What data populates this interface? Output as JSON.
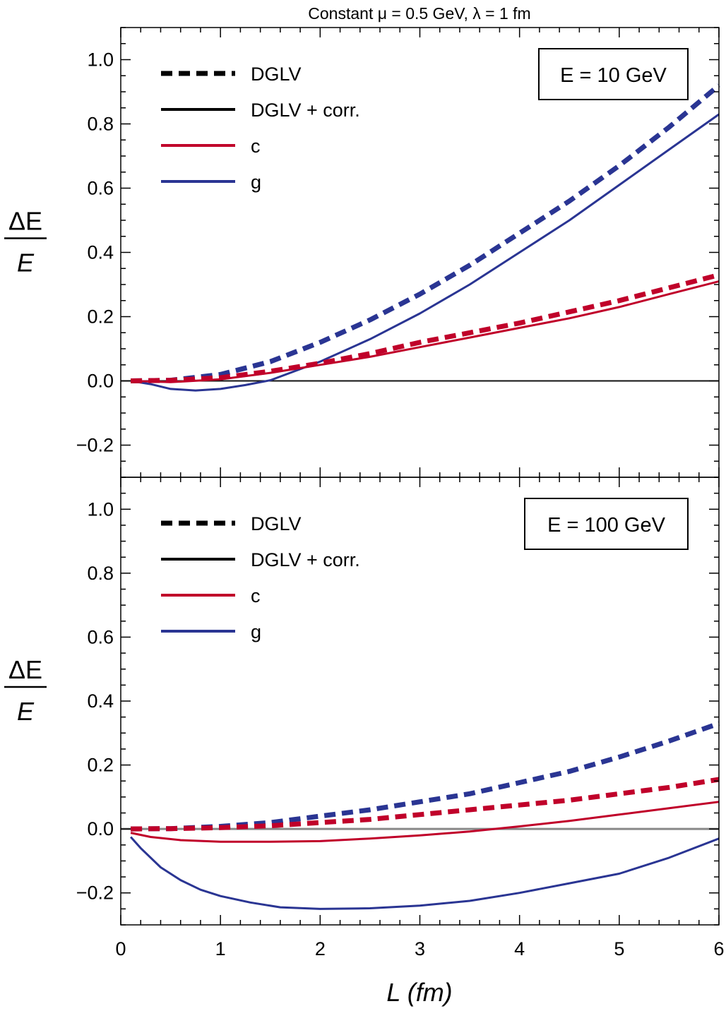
{
  "chart_data": {
    "type": "line",
    "title": "Constant μ = 0.5 GeV, λ = 1 fm",
    "xlabel": "L (fm)",
    "ylabel_numerator": "ΔE",
    "ylabel_denominator": "E",
    "xlim": [
      0,
      6
    ],
    "ylim": [
      -0.3,
      1.1
    ],
    "x_ticks": [
      "0",
      "1",
      "2",
      "3",
      "4",
      "5",
      "6"
    ],
    "y_ticks": [
      "−0.2",
      "0.0",
      "0.2",
      "0.4",
      "0.6",
      "0.8",
      "1.0"
    ],
    "legend": [
      {
        "label": "DGLV",
        "style": "dashed",
        "color": "#000000"
      },
      {
        "label": "DGLV + corr.",
        "style": "solid",
        "color": "#000000"
      },
      {
        "label": "c",
        "style": "solid",
        "color": "#c0002a"
      },
      {
        "label": "g",
        "style": "solid",
        "color": "#2a3593"
      }
    ],
    "colors": {
      "c": "#c0002a",
      "g": "#2a3593"
    },
    "panels": [
      {
        "energy_label": "E = 10 GeV",
        "series": [
          {
            "name": "g DGLV",
            "parton": "g",
            "style": "dashed",
            "x": [
              0.1,
              0.5,
              1.0,
              1.5,
              2.0,
              2.5,
              3.0,
              3.5,
              4.0,
              4.5,
              5.0,
              5.5,
              6.0
            ],
            "y": [
              0.0,
              0.002,
              0.02,
              0.06,
              0.12,
              0.19,
              0.27,
              0.36,
              0.46,
              0.56,
              0.67,
              0.79,
              0.92
            ]
          },
          {
            "name": "g DGLV + corr.",
            "parton": "g",
            "style": "solid",
            "x": [
              0.1,
              0.3,
              0.5,
              0.75,
              1.0,
              1.25,
              1.5,
              2.0,
              2.5,
              3.0,
              3.5,
              4.0,
              4.5,
              5.0,
              5.5,
              6.0
            ],
            "y": [
              0.0,
              -0.01,
              -0.025,
              -0.03,
              -0.025,
              -0.013,
              0.002,
              0.06,
              0.13,
              0.21,
              0.3,
              0.4,
              0.5,
              0.61,
              0.72,
              0.83
            ]
          },
          {
            "name": "c DGLV",
            "parton": "c",
            "style": "dashed",
            "x": [
              0.1,
              0.5,
              1.0,
              1.5,
              2.0,
              2.5,
              3.0,
              3.5,
              4.0,
              4.5,
              5.0,
              5.5,
              6.0
            ],
            "y": [
              0.0,
              0.002,
              0.01,
              0.03,
              0.055,
              0.085,
              0.12,
              0.15,
              0.18,
              0.215,
              0.25,
              0.29,
              0.33
            ]
          },
          {
            "name": "c DGLV + corr.",
            "parton": "c",
            "style": "solid",
            "x": [
              0.1,
              0.5,
              1.0,
              1.5,
              2.0,
              2.5,
              3.0,
              3.5,
              4.0,
              4.5,
              5.0,
              5.5,
              6.0
            ],
            "y": [
              0.0,
              -0.004,
              0.005,
              0.025,
              0.05,
              0.075,
              0.105,
              0.135,
              0.165,
              0.195,
              0.23,
              0.27,
              0.31
            ]
          }
        ]
      },
      {
        "energy_label": "E = 100 GeV",
        "series": [
          {
            "name": "g DGLV",
            "parton": "g",
            "style": "dashed",
            "x": [
              0.1,
              0.5,
              1.0,
              1.5,
              2.0,
              2.5,
              3.0,
              3.5,
              4.0,
              4.5,
              5.0,
              5.5,
              6.0
            ],
            "y": [
              0.0,
              0.001,
              0.008,
              0.02,
              0.04,
              0.06,
              0.085,
              0.11,
              0.145,
              0.18,
              0.225,
              0.275,
              0.33
            ]
          },
          {
            "name": "g DGLV + corr.",
            "parton": "g",
            "style": "solid",
            "x": [
              0.1,
              0.2,
              0.4,
              0.6,
              0.8,
              1.0,
              1.3,
              1.6,
              2.0,
              2.5,
              3.0,
              3.5,
              4.0,
              4.5,
              5.0,
              5.5,
              6.0
            ],
            "y": [
              -0.025,
              -0.06,
              -0.12,
              -0.16,
              -0.19,
              -0.21,
              -0.23,
              -0.245,
              -0.25,
              -0.248,
              -0.24,
              -0.225,
              -0.2,
              -0.17,
              -0.14,
              -0.09,
              -0.03
            ]
          },
          {
            "name": "c DGLV",
            "parton": "c",
            "style": "dashed",
            "x": [
              0.1,
              0.5,
              1.0,
              1.5,
              2.0,
              2.5,
              3.0,
              3.5,
              4.0,
              4.5,
              5.0,
              5.5,
              6.0
            ],
            "y": [
              0.0,
              0.001,
              0.004,
              0.01,
              0.02,
              0.03,
              0.045,
              0.06,
              0.075,
              0.09,
              0.11,
              0.13,
              0.155
            ]
          },
          {
            "name": "c DGLV + corr.",
            "parton": "c",
            "style": "solid",
            "x": [
              0.1,
              0.3,
              0.6,
              1.0,
              1.5,
              2.0,
              2.5,
              3.0,
              3.5,
              4.0,
              4.5,
              5.0,
              5.5,
              6.0
            ],
            "y": [
              -0.012,
              -0.025,
              -0.035,
              -0.04,
              -0.04,
              -0.038,
              -0.03,
              -0.02,
              -0.008,
              0.008,
              0.025,
              0.045,
              0.065,
              0.085
            ]
          }
        ]
      }
    ]
  }
}
